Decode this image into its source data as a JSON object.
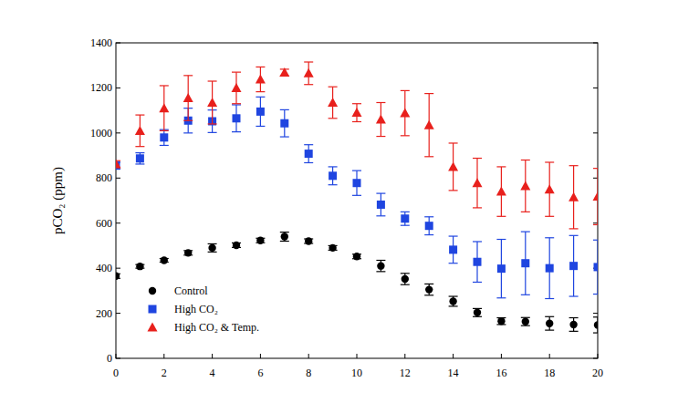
{
  "chart_data": {
    "type": "scatter",
    "y_label": "pCO₂ (ppm)",
    "x": [
      0,
      1,
      2,
      3,
      4,
      5,
      6,
      7,
      8,
      9,
      10,
      11,
      12,
      13,
      14,
      15,
      16,
      17,
      18,
      19,
      20
    ],
    "xlim": [
      0,
      20
    ],
    "xticks": [
      0,
      2,
      4,
      6,
      8,
      10,
      12,
      14,
      16,
      18,
      20
    ],
    "ylim": [
      0,
      1400
    ],
    "yticks": [
      0,
      200,
      400,
      600,
      800,
      1000,
      1200,
      1400
    ],
    "grid": false,
    "legend": "lower left",
    "series": [
      {
        "name": "Control",
        "color": "#000000",
        "marker": "circle",
        "values": [
          365,
          408,
          435,
          468,
          490,
          502,
          523,
          540,
          520,
          490,
          452,
          410,
          352,
          305,
          253,
          203,
          165,
          163,
          155,
          150,
          148
        ],
        "errors": [
          10,
          8,
          8,
          10,
          18,
          10,
          10,
          20,
          10,
          10,
          10,
          25,
          25,
          25,
          22,
          18,
          15,
          18,
          30,
          30,
          35
        ]
      },
      {
        "name": "High CO₂",
        "color": "#1f45e0",
        "marker": "square",
        "values": [
          855,
          887,
          980,
          1055,
          1052,
          1065,
          1095,
          1043,
          908,
          810,
          778,
          682,
          620,
          588,
          482,
          428,
          398,
          422,
          400,
          410,
          405
        ],
        "errors": [
          15,
          25,
          35,
          55,
          50,
          60,
          65,
          60,
          40,
          40,
          55,
          50,
          30,
          40,
          60,
          90,
          130,
          140,
          135,
          135,
          120
        ]
      },
      {
        "name": "High CO₂ & Temp.",
        "color": "#e8201c",
        "marker": "triangle",
        "values": [
          862,
          1010,
          1110,
          1155,
          1135,
          1200,
          1238,
          1268,
          1265,
          1135,
          1090,
          1060,
          1088,
          1035,
          850,
          778,
          740,
          765,
          750,
          715,
          718
        ],
        "errors": [
          15,
          70,
          100,
          100,
          95,
          70,
          55,
          15,
          50,
          70,
          40,
          75,
          100,
          140,
          105,
          110,
          110,
          115,
          120,
          140,
          125
        ]
      }
    ]
  }
}
